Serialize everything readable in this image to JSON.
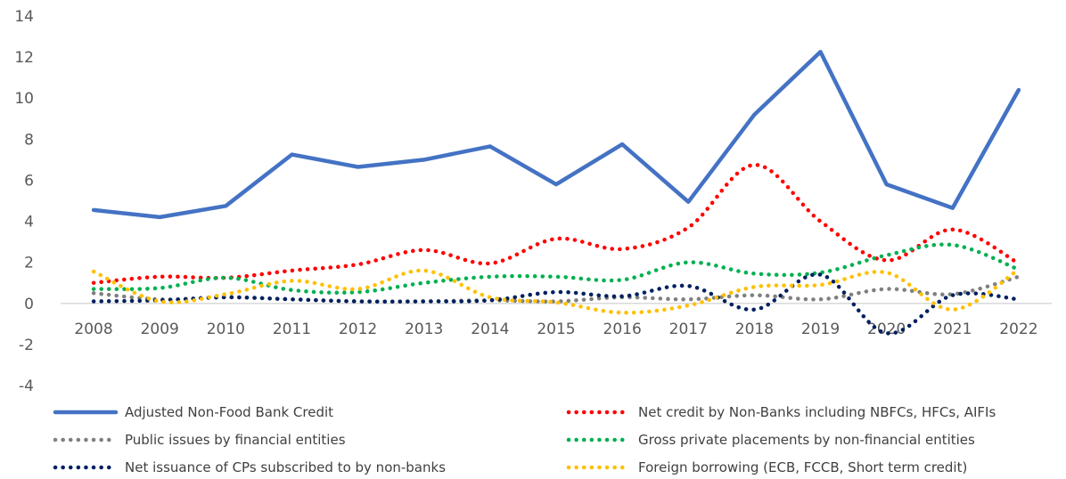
{
  "chart_data": {
    "type": "line",
    "x": [
      "2008",
      "2009",
      "2010",
      "2011",
      "2012",
      "2013",
      "2014",
      "2015",
      "2016",
      "2017",
      "2018",
      "2019",
      "2020",
      "2021",
      "2022"
    ],
    "ylim": [
      -4,
      14
    ],
    "yticks": [
      -4,
      -2,
      0,
      2,
      4,
      6,
      8,
      10,
      12,
      14
    ],
    "grid": false,
    "legend_position": "bottom",
    "series": [
      {
        "name": "Adjusted Non-Food Bank Credit",
        "style": "solid",
        "color": "#4472c4",
        "values": [
          4.55,
          4.2,
          4.75,
          7.25,
          6.65,
          7.0,
          7.65,
          5.8,
          7.75,
          4.95,
          9.2,
          12.25,
          5.8,
          4.65,
          10.4
        ]
      },
      {
        "name": "Net credit by Non-Banks including NBFCs, HFCs, AIFIs",
        "style": "dotted",
        "color": "#ff0000",
        "values": [
          1.0,
          1.3,
          1.25,
          1.6,
          1.9,
          2.6,
          1.95,
          3.15,
          2.65,
          3.7,
          6.75,
          4.0,
          2.1,
          3.6,
          1.95
        ]
      },
      {
        "name": "Public issues by financial entities",
        "style": "dotted",
        "color": "#808080",
        "values": [
          0.5,
          0.2,
          0.3,
          0.2,
          0.1,
          0.1,
          0.15,
          0.1,
          0.3,
          0.2,
          0.4,
          0.2,
          0.7,
          0.45,
          1.3
        ]
      },
      {
        "name": "Gross private placements by non-financial entities",
        "style": "dotted",
        "color": "#00b050",
        "values": [
          0.7,
          0.75,
          1.25,
          0.65,
          0.55,
          1.0,
          1.3,
          1.3,
          1.15,
          2.0,
          1.45,
          1.5,
          2.35,
          2.85,
          1.65
        ]
      },
      {
        "name": "Net issuance of CPs subscribed to by non-banks",
        "style": "dotted",
        "color": "#002060",
        "values": [
          0.1,
          0.15,
          0.3,
          0.2,
          0.1,
          0.1,
          0.15,
          0.55,
          0.35,
          0.85,
          -0.3,
          1.4,
          -1.45,
          0.4,
          0.2
        ]
      },
      {
        "name": "Foreign borrowing (ECB, FCCB, Short term credit)",
        "style": "dotted",
        "color": "#ffc000",
        "values": [
          1.55,
          0.1,
          0.45,
          1.1,
          0.7,
          1.6,
          0.3,
          0.05,
          -0.45,
          -0.1,
          0.8,
          0.9,
          1.5,
          -0.3,
          1.65
        ]
      }
    ]
  }
}
